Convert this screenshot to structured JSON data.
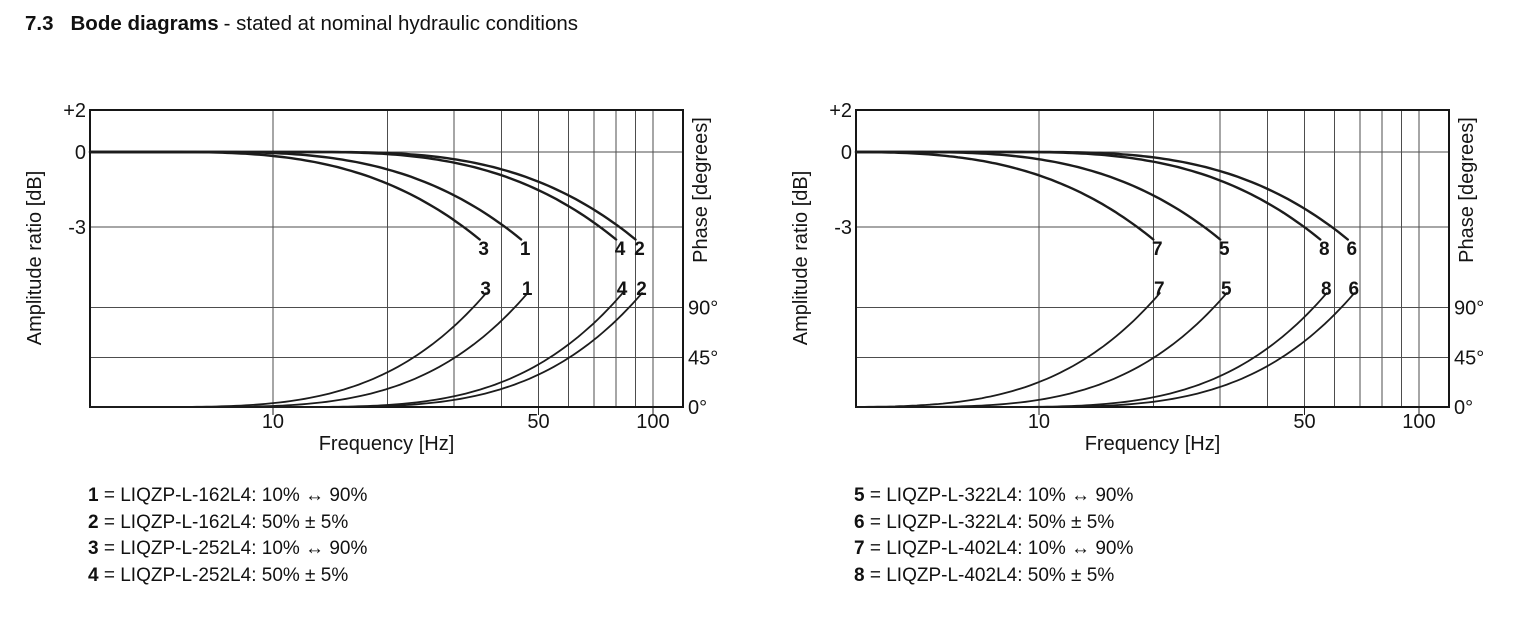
{
  "page_title": {
    "section": "7.3",
    "main": "Bode diagrams",
    "suffix": "- stated at nominal hydraulic conditions"
  },
  "chart_data": [
    {
      "type": "line",
      "name": "bode-diagram-left",
      "x_axis": {
        "label": "Frequency [Hz]",
        "scale": "log",
        "range_hz": [
          3.3,
          120
        ],
        "gridlines_hz": [
          10,
          20,
          30,
          40,
          50,
          60,
          70,
          80,
          90,
          100
        ],
        "ticks": [
          {
            "hz": 10,
            "label": "10"
          },
          {
            "hz": 50,
            "label": "50"
          },
          {
            "hz": 100,
            "label": "100"
          }
        ]
      },
      "y_axis_left": {
        "label": "Amplitude ratio [dB]",
        "ticks": [
          {
            "db": 2,
            "label": "+2"
          },
          {
            "db": 0,
            "label": "0"
          },
          {
            "db": -3,
            "label": "-3"
          }
        ]
      },
      "y_axis_right": {
        "label": "Phase [degrees]",
        "ticks": [
          {
            "deg": 90,
            "label": "90°"
          },
          {
            "deg": 45,
            "label": "45°"
          },
          {
            "deg": 0,
            "label": "0°"
          }
        ]
      },
      "series": [
        {
          "curve": "3",
          "model": "LIQZP-L-252L4",
          "signal": "10% ↔ 90%",
          "amplitude_minus3db_hz": 35,
          "phase_90deg_hz": 35
        },
        {
          "curve": "1",
          "model": "LIQZP-L-162L4",
          "signal": "10% ↔ 90%",
          "amplitude_minus3db_hz": 45,
          "phase_90deg_hz": 45
        },
        {
          "curve": "4",
          "model": "LIQZP-L-252L4",
          "signal": "50% ± 5%",
          "amplitude_minus3db_hz": 80,
          "phase_90deg_hz": 80
        },
        {
          "curve": "2",
          "model": "LIQZP-L-162L4",
          "signal": "50% ± 5%",
          "amplitude_minus3db_hz": 90,
          "phase_90deg_hz": 90
        }
      ],
      "legend": [
        {
          "num": "1",
          "model": "LIQZP-L-162L4",
          "signal": "10% ↔ 90%"
        },
        {
          "num": "2",
          "model": "LIQZP-L-162L4",
          "signal": "50% ± 5%"
        },
        {
          "num": "3",
          "model": "LIQZP-L-252L4",
          "signal": "10% ↔ 90%"
        },
        {
          "num": "4",
          "model": "LIQZP-L-252L4",
          "signal": "50% ± 5%"
        }
      ]
    },
    {
      "type": "line",
      "name": "bode-diagram-right",
      "x_axis": {
        "label": "Frequency [Hz]",
        "scale": "log",
        "range_hz": [
          3.3,
          120
        ],
        "gridlines_hz": [
          10,
          20,
          30,
          40,
          50,
          60,
          70,
          80,
          90,
          100
        ],
        "ticks": [
          {
            "hz": 10,
            "label": "10"
          },
          {
            "hz": 50,
            "label": "50"
          },
          {
            "hz": 100,
            "label": "100"
          }
        ]
      },
      "y_axis_left": {
        "label": "Amplitude ratio [dB]",
        "ticks": [
          {
            "db": 2,
            "label": "+2"
          },
          {
            "db": 0,
            "label": "0"
          },
          {
            "db": -3,
            "label": "-3"
          }
        ]
      },
      "y_axis_right": {
        "label": "Phase [degrees]",
        "ticks": [
          {
            "deg": 90,
            "label": "90°"
          },
          {
            "deg": 45,
            "label": "45°"
          },
          {
            "deg": 0,
            "label": "0°"
          }
        ]
      },
      "series": [
        {
          "curve": "7",
          "model": "LIQZP-L-402L4",
          "signal": "10% ↔ 90%",
          "amplitude_minus3db_hz": 20,
          "phase_90deg_hz": 20
        },
        {
          "curve": "5",
          "model": "LIQZP-L-322L4",
          "signal": "10% ↔ 90%",
          "amplitude_minus3db_hz": 30,
          "phase_90deg_hz": 30
        },
        {
          "curve": "8",
          "model": "LIQZP-L-402L4",
          "signal": "50% ± 5%",
          "amplitude_minus3db_hz": 55,
          "phase_90deg_hz": 55
        },
        {
          "curve": "6",
          "model": "LIQZP-L-322L4",
          "signal": "50% ± 5%",
          "amplitude_minus3db_hz": 65,
          "phase_90deg_hz": 65
        }
      ],
      "legend": [
        {
          "num": "5",
          "model": "LIQZP-L-322L4",
          "signal": "10% ↔ 90%"
        },
        {
          "num": "6",
          "model": "LIQZP-L-322L4",
          "signal": "50% ± 5%"
        },
        {
          "num": "7",
          "model": "LIQZP-L-402L4",
          "signal": "10% ↔ 90%"
        },
        {
          "num": "8",
          "model": "LIQZP-L-402L4",
          "signal": "50% ± 5%"
        }
      ]
    }
  ],
  "style": {
    "curve_color": "#1c1c1c",
    "grid_color": "#4d4d4d",
    "border_color": "#161616"
  }
}
